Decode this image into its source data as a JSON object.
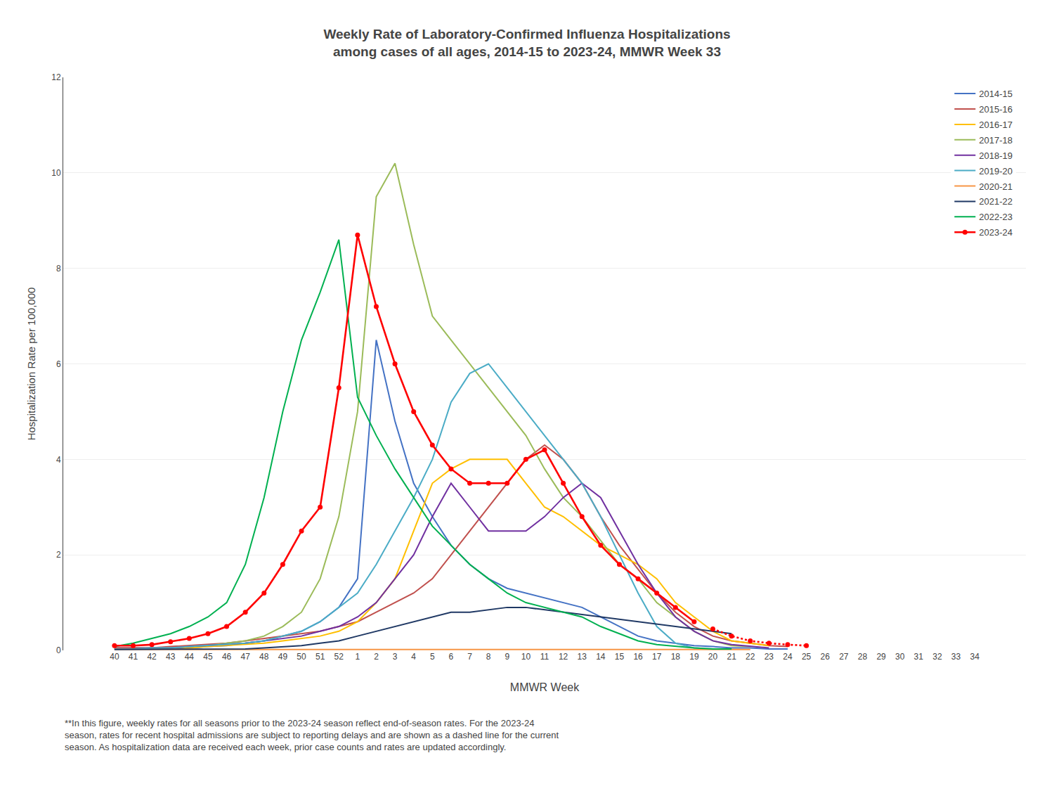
{
  "chart_data": {
    "type": "line",
    "title": "Weekly Rate of Laboratory-Confirmed Influenza Hospitalizations\namong cases of all ages, 2014-15 to 2023-24, MMWR Week 33",
    "x_label": "MMWR Week",
    "y_label": "Hospitalization Rate per 100,000",
    "annotations": [
      "**In this figure, weekly rates for all seasons prior to the 2023-24 season reflect end-of-season rates. For the 2023-24\nseason, rates for recent hospital admissions are subject to reporting delays and are shown as a dashed line for the current\nseason. As hospitalization data are received each week, prior case counts and rates are updated accordingly."
    ],
    "categories": [
      "40",
      "41",
      "42",
      "43",
      "44",
      "45",
      "46",
      "47",
      "48",
      "49",
      "50",
      "51",
      "52",
      "1",
      "2",
      "3",
      "4",
      "5",
      "6",
      "7",
      "8",
      "9",
      "10",
      "11",
      "12",
      "13",
      "14",
      "15",
      "16",
      "17",
      "18",
      "19",
      "20",
      "21",
      "22",
      "23",
      "24",
      "25",
      "26",
      "27",
      "28",
      "29",
      "30",
      "31",
      "32",
      "33",
      "34"
    ],
    "ylim": [
      0,
      12
    ],
    "yticks": [
      0,
      2,
      4,
      6,
      8,
      10,
      12
    ],
    "grid": true,
    "legend": "upper right",
    "series": [
      {
        "name": "2014-15",
        "color": "#4472C4",
        "line_style": "solid",
        "values": [
          0.05,
          0.05,
          0.05,
          0.05,
          0.05,
          0.08,
          0.1,
          0.15,
          0.2,
          0.3,
          0.4,
          0.6,
          0.9,
          1.5,
          6.5,
          4.8,
          3.5,
          2.8,
          2.2,
          1.8,
          1.5,
          1.3,
          1.2,
          1.1,
          1.0,
          0.9,
          0.7,
          0.5,
          0.3,
          0.2,
          0.15,
          0.1,
          0.08,
          0.05,
          0.05,
          0.03,
          0.03,
          null,
          null,
          null,
          null,
          null,
          null,
          null,
          null,
          null,
          null
        ]
      },
      {
        "name": "2015-16",
        "color": "#C0504D",
        "line_style": "solid",
        "values": [
          0.05,
          0.05,
          0.05,
          0.08,
          0.1,
          0.12,
          0.15,
          0.2,
          0.25,
          0.3,
          0.35,
          0.4,
          0.5,
          0.6,
          0.8,
          1.0,
          1.2,
          1.5,
          2.0,
          2.5,
          3.0,
          3.5,
          4.0,
          4.3,
          4.0,
          3.5,
          2.8,
          2.2,
          1.7,
          1.2,
          0.8,
          0.5,
          0.3,
          0.2,
          0.15,
          0.1,
          0.08,
          null,
          null,
          null,
          null,
          null,
          null,
          null,
          null,
          null,
          null
        ]
      },
      {
        "name": "2016-17",
        "color": "#FFBF00",
        "line_style": "solid",
        "values": [
          0.03,
          0.03,
          0.03,
          0.05,
          0.05,
          0.08,
          0.1,
          0.12,
          0.15,
          0.2,
          0.25,
          0.3,
          0.4,
          0.6,
          1.0,
          1.5,
          2.5,
          3.5,
          3.8,
          4.0,
          4.0,
          4.0,
          3.5,
          3.0,
          2.8,
          2.5,
          2.2,
          2.0,
          1.8,
          1.5,
          1.0,
          0.7,
          0.4,
          0.2,
          0.15,
          0.1,
          null,
          null,
          null,
          null,
          null,
          null,
          null,
          null,
          null,
          null,
          null
        ]
      },
      {
        "name": "2017-18",
        "color": "#9BBB59",
        "line_style": "solid",
        "values": [
          0.03,
          0.03,
          0.05,
          0.05,
          0.08,
          0.1,
          0.15,
          0.2,
          0.3,
          0.5,
          0.8,
          1.5,
          2.8,
          5.0,
          9.5,
          10.2,
          8.5,
          7.0,
          6.5,
          6.0,
          5.5,
          5.0,
          4.5,
          3.8,
          3.2,
          2.8,
          2.3,
          1.8,
          1.5,
          1.0,
          0.7,
          0.4,
          0.2,
          0.1,
          0.08,
          null,
          null,
          null,
          null,
          null,
          null,
          null,
          null,
          null,
          null,
          null,
          null
        ]
      },
      {
        "name": "2018-19",
        "color": "#7030A0",
        "line_style": "solid",
        "values": [
          0.03,
          0.03,
          0.05,
          0.05,
          0.08,
          0.1,
          0.12,
          0.15,
          0.2,
          0.25,
          0.3,
          0.4,
          0.5,
          0.7,
          1.0,
          1.5,
          2.0,
          2.8,
          3.5,
          3.0,
          2.5,
          2.5,
          2.5,
          2.8,
          3.2,
          3.5,
          3.2,
          2.5,
          1.8,
          1.2,
          0.7,
          0.4,
          0.2,
          0.12,
          0.08,
          0.05,
          null,
          null,
          null,
          null,
          null,
          null,
          null,
          null,
          null,
          null,
          null
        ]
      },
      {
        "name": "2019-20",
        "color": "#4BACC6",
        "line_style": "solid",
        "values": [
          0.03,
          0.03,
          0.05,
          0.05,
          0.08,
          0.1,
          0.12,
          0.15,
          0.2,
          0.3,
          0.4,
          0.6,
          0.9,
          1.2,
          1.8,
          2.5,
          3.2,
          4.0,
          5.2,
          5.8,
          6.0,
          5.5,
          5.0,
          4.5,
          4.0,
          3.5,
          2.8,
          2.0,
          1.2,
          0.5,
          0.15,
          0.05,
          0.03,
          null,
          null,
          null,
          null,
          null,
          null,
          null,
          null,
          null,
          null,
          null,
          null,
          null,
          null
        ]
      },
      {
        "name": "2020-21",
        "color": "#F79646",
        "line_style": "solid",
        "values": [
          0.02,
          0.02,
          0.02,
          0.02,
          0.02,
          0.02,
          0.02,
          0.02,
          0.02,
          0.02,
          0.02,
          0.02,
          0.02,
          0.02,
          0.02,
          0.02,
          0.02,
          0.02,
          0.02,
          0.02,
          0.02,
          0.02,
          0.02,
          0.02,
          0.02,
          0.02,
          0.02,
          0.02,
          0.02,
          0.02,
          0.02,
          0.02,
          0.02,
          0.02,
          0.02,
          null,
          null,
          null,
          null,
          null,
          null,
          null,
          null,
          null,
          null,
          null,
          null
        ]
      },
      {
        "name": "2021-22",
        "color": "#1F3864",
        "line_style": "solid",
        "values": [
          0.02,
          0.02,
          0.02,
          0.02,
          0.02,
          0.02,
          0.02,
          0.03,
          0.05,
          0.08,
          0.1,
          0.15,
          0.2,
          0.3,
          0.4,
          0.5,
          0.6,
          0.7,
          0.8,
          0.8,
          0.85,
          0.9,
          0.9,
          0.85,
          0.8,
          0.75,
          0.7,
          0.65,
          0.6,
          0.55,
          0.5,
          0.45,
          0.4,
          0.35,
          null,
          null,
          null,
          null,
          null,
          null,
          null,
          null,
          null,
          null,
          null,
          null,
          null
        ]
      },
      {
        "name": "2022-23",
        "color": "#00B050",
        "line_style": "solid",
        "values": [
          0.08,
          0.15,
          0.25,
          0.35,
          0.5,
          0.7,
          1.0,
          1.8,
          3.2,
          5.0,
          6.5,
          7.5,
          8.6,
          5.3,
          4.5,
          3.8,
          3.2,
          2.6,
          2.2,
          1.8,
          1.5,
          1.2,
          1.0,
          0.9,
          0.8,
          0.7,
          0.5,
          0.35,
          0.2,
          0.12,
          0.08,
          0.05,
          0.03,
          0.03,
          null,
          null,
          null,
          null,
          null,
          null,
          null,
          null,
          null,
          null,
          null,
          null,
          null
        ]
      },
      {
        "name": "2023-24",
        "color": "#FF0000",
        "line_style": "solid",
        "marker": "circle",
        "values": [
          0.1,
          0.1,
          0.12,
          0.18,
          0.25,
          0.35,
          0.5,
          0.8,
          1.2,
          1.8,
          2.5,
          3.0,
          5.5,
          8.7,
          7.2,
          6.0,
          5.0,
          4.3,
          3.8,
          3.5,
          3.5,
          3.5,
          4.0,
          4.2,
          3.5,
          2.8,
          2.2,
          1.8,
          1.5,
          1.2,
          0.9,
          0.6,
          null,
          null,
          null,
          null,
          null,
          null,
          null,
          null,
          null,
          null,
          null,
          null,
          null,
          null,
          null
        ]
      },
      {
        "name": "2023-24",
        "color": "#FF0000",
        "line_style": "dotted",
        "marker": "circle",
        "values": [
          null,
          null,
          null,
          null,
          null,
          null,
          null,
          null,
          null,
          null,
          null,
          null,
          null,
          null,
          null,
          null,
          null,
          null,
          null,
          null,
          null,
          null,
          null,
          null,
          null,
          null,
          null,
          null,
          null,
          null,
          null,
          null,
          0.45,
          0.3,
          0.2,
          0.15,
          0.12,
          0.1,
          null,
          null,
          null,
          null,
          null,
          null,
          null,
          null,
          null
        ]
      }
    ]
  }
}
